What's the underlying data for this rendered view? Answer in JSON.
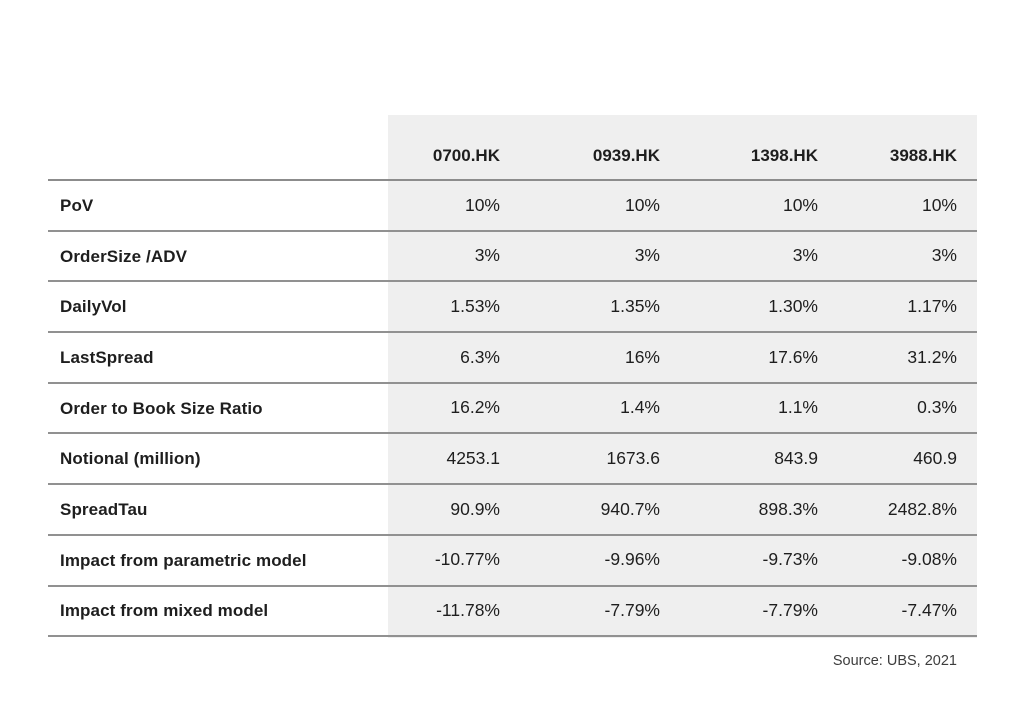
{
  "chart_data": {
    "type": "table",
    "columns": [
      "0700.HK",
      "0939.HK",
      "1398.HK",
      "3988.HK"
    ],
    "rows": [
      {
        "label": "PoV",
        "values": [
          "10%",
          "10%",
          "10%",
          "10%"
        ]
      },
      {
        "label": "OrderSize /ADV",
        "values": [
          "3%",
          "3%",
          "3%",
          "3%"
        ]
      },
      {
        "label": "DailyVol",
        "values": [
          "1.53%",
          "1.35%",
          "1.30%",
          "1.17%"
        ]
      },
      {
        "label": "LastSpread",
        "values": [
          "6.3%",
          "16%",
          "17.6%",
          "31.2%"
        ]
      },
      {
        "label": "Order to Book Size Ratio",
        "values": [
          "16.2%",
          "1.4%",
          "1.1%",
          "0.3%"
        ]
      },
      {
        "label": "Notional (million)",
        "values": [
          "4253.1",
          "1673.6",
          "843.9",
          "460.9"
        ]
      },
      {
        "label": "SpreadTau",
        "values": [
          "90.9%",
          "940.7%",
          "898.3%",
          "2482.8%"
        ]
      },
      {
        "label": "Impact from parametric model",
        "values": [
          "-10.77%",
          "-9.96%",
          "-9.73%",
          "-9.08%"
        ]
      },
      {
        "label": "Impact from mixed model",
        "values": [
          "-11.78%",
          "-7.79%",
          "-7.79%",
          "-7.47%"
        ]
      }
    ],
    "layout": {
      "grid": "horizontal-rules-only",
      "value_alignment": "right",
      "shaded_value_columns": true
    }
  },
  "source_note": "Source: UBS, 2021",
  "colors": {
    "shade_bg": "#efefef",
    "rule_line": "#8c8c8c",
    "text": "#1e1e1e",
    "source_text": "#3d3d3d"
  }
}
